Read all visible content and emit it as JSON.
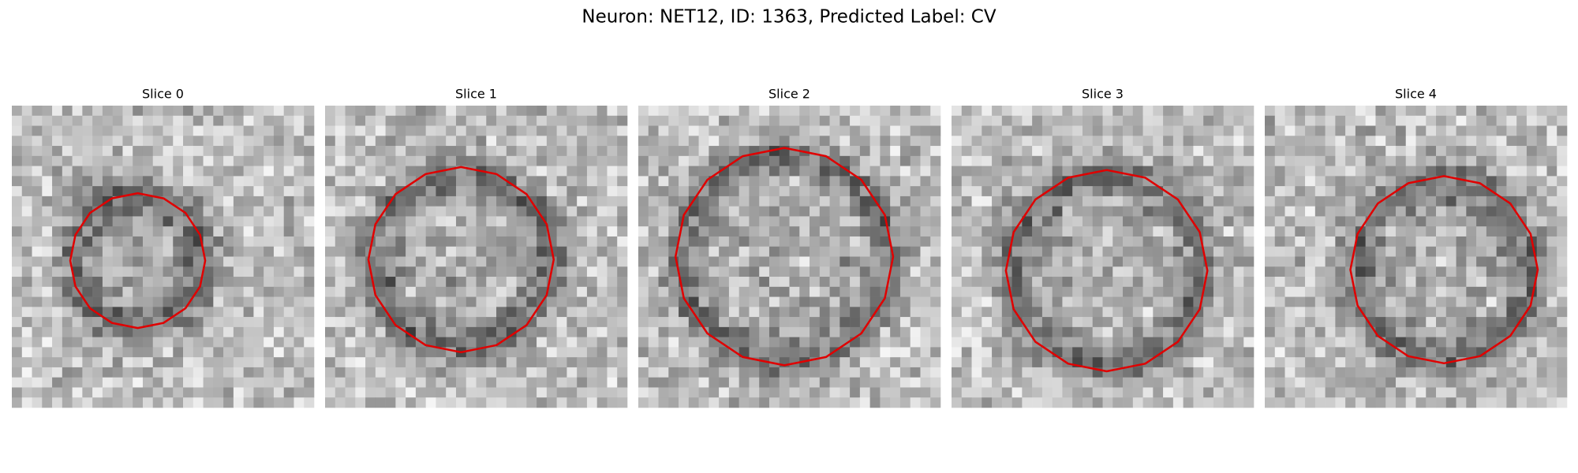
{
  "title": "Neuron: NET12, ID: 1363, Predicted Label: CV",
  "panels": [
    {
      "title": "Slice 0"
    },
    {
      "title": "Slice 1"
    },
    {
      "title": "Slice 2"
    },
    {
      "title": "Slice 3"
    },
    {
      "title": "Slice 4"
    }
  ]
}
